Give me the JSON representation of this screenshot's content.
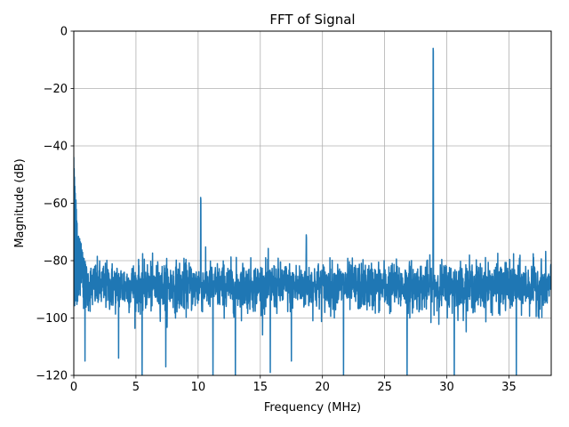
{
  "chart_data": {
    "type": "line",
    "title": "FFT of Signal",
    "xlabel": "Frequency (MHz)",
    "ylabel": "Magnitude (dB)",
    "xlim": [
      0,
      38.4
    ],
    "ylim": [
      -120,
      0
    ],
    "xticks": [
      0,
      5,
      10,
      15,
      20,
      25,
      30,
      35
    ],
    "yticks": [
      0,
      -20,
      -40,
      -60,
      -80,
      -100,
      -120
    ],
    "xtick_labels": [
      "0",
      "5",
      "10",
      "15",
      "20",
      "25",
      "30",
      "35"
    ],
    "ytick_labels": [
      "0",
      "−20",
      "−40",
      "−60",
      "−80",
      "−100",
      "−120"
    ],
    "grid": true,
    "line_color": "#1f77b4",
    "noise_floor": {
      "median_db": -89,
      "upper_envelope_db": -80,
      "lower_envelope_db": -100
    },
    "dc_component": {
      "x": [
        0.0,
        0.1,
        0.2,
        0.3,
        0.5,
        0.8,
        1.0
      ],
      "y": [
        -42,
        -53,
        -60,
        -70,
        -72,
        -78,
        -82
      ]
    },
    "peaks": [
      {
        "x": 10.2,
        "y": -58
      },
      {
        "x": 18.7,
        "y": -71
      },
      {
        "x": 28.9,
        "y": -6
      }
    ],
    "notable_dips": [
      {
        "x": 0.9,
        "y": -113
      },
      {
        "x": 3.6,
        "y": -112
      },
      {
        "x": 5.5,
        "y": -120
      },
      {
        "x": 7.4,
        "y": -115
      },
      {
        "x": 11.2,
        "y": -120
      },
      {
        "x": 13.0,
        "y": -120
      },
      {
        "x": 15.8,
        "y": -117
      },
      {
        "x": 17.5,
        "y": -113
      },
      {
        "x": 21.7,
        "y": -120
      },
      {
        "x": 26.8,
        "y": -120
      },
      {
        "x": 30.6,
        "y": -120
      },
      {
        "x": 35.6,
        "y": -118
      }
    ]
  }
}
